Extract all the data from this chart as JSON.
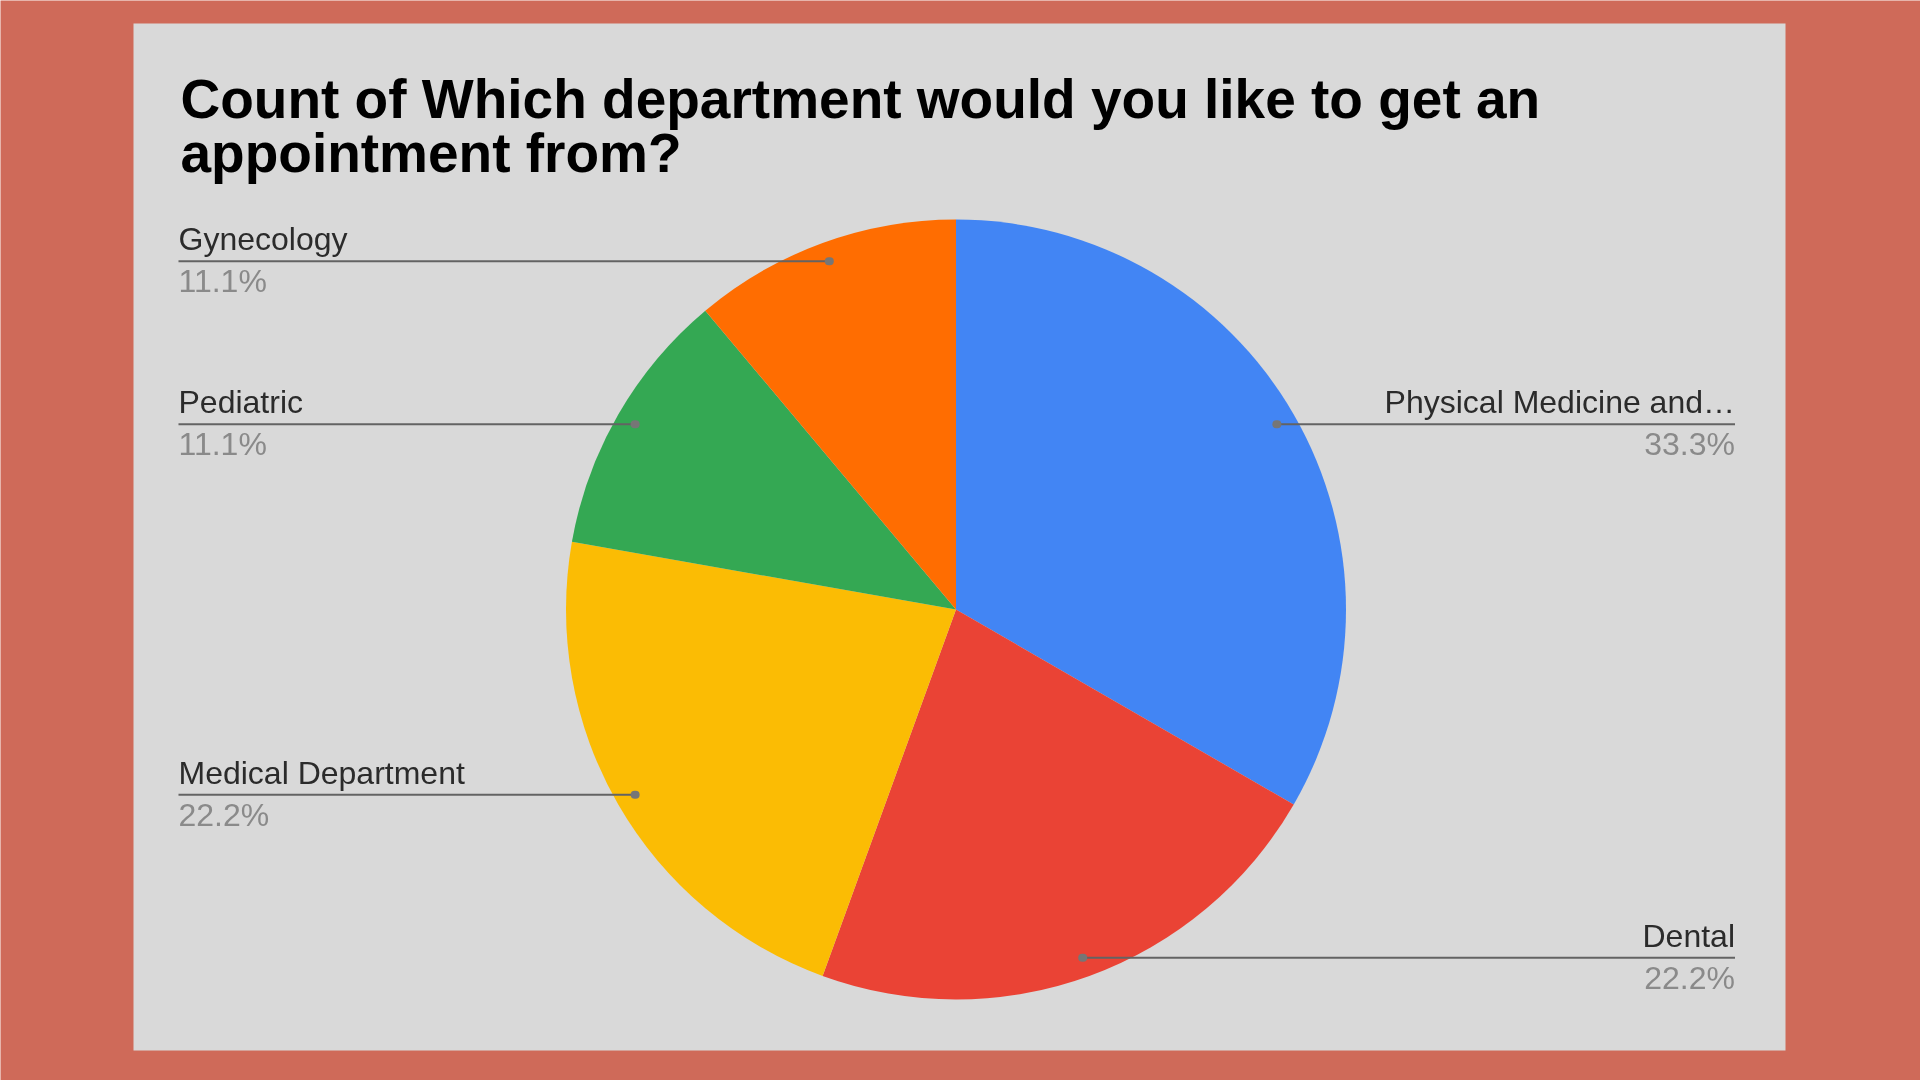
{
  "chart_data": {
    "type": "pie",
    "title": "Count of Which department would you like to get an appointment from?",
    "categories": [
      "Physical Medicine and…",
      "Dental",
      "Medical Department",
      "Pediatric",
      "Gynecology"
    ],
    "values": [
      33.3,
      22.2,
      22.2,
      11.1,
      11.1
    ],
    "value_labels": [
      "33.3%",
      "22.2%",
      "22.2%",
      "11.1%",
      "11.1%"
    ],
    "colors": [
      "#4285f4",
      "#ea4335",
      "#fbbc04",
      "#34a853",
      "#ff6d01"
    ]
  }
}
